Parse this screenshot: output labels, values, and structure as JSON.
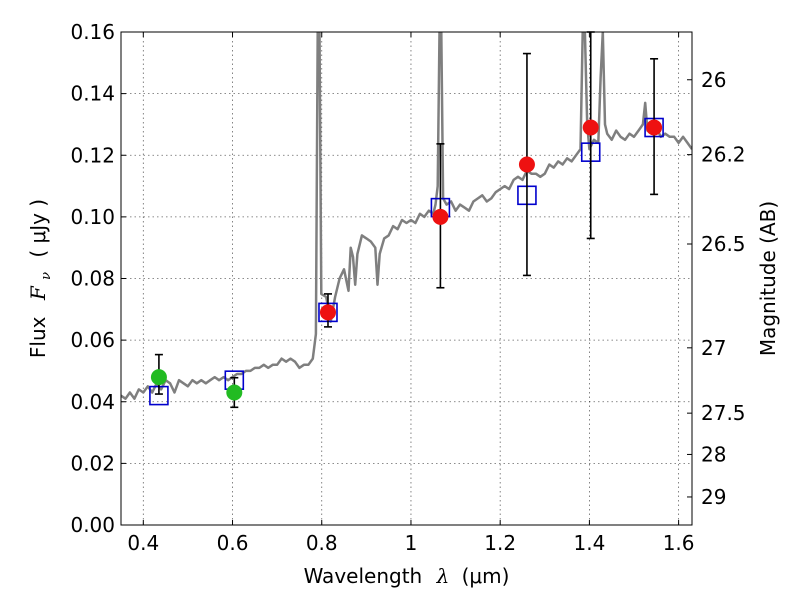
{
  "chart_data": {
    "type": "scatter",
    "xlabel_prefix": "Wavelength",
    "xlabel_symbol": "λ",
    "xlabel_unit": "(μm)",
    "ylabel_prefix": "Flux",
    "ylabel_symbol": "F",
    "ylabel_sub": "ν",
    "ylabel_unit": "( μJy )",
    "y2label": "Magnitude (AB)",
    "xlim": [
      0.35,
      1.63
    ],
    "ylim": [
      0.0,
      0.16
    ],
    "grid": true,
    "x_ticks": [
      0.4,
      0.6,
      0.8,
      1.0,
      1.2,
      1.4,
      1.6
    ],
    "x_tick_labels": [
      "0.4",
      "0.6",
      "0.8",
      "1",
      "1.2",
      "1.4",
      "1.6"
    ],
    "y_ticks": [
      0.0,
      0.02,
      0.04,
      0.06,
      0.08,
      0.1,
      0.12,
      0.14,
      0.16
    ],
    "y_tick_labels": [
      "0.00",
      "0.02",
      "0.04",
      "0.06",
      "0.08",
      "0.10",
      "0.12",
      "0.14",
      "0.16"
    ],
    "y2_ticks": [
      {
        "label": "26",
        "flux": 0.1445
      },
      {
        "label": "26.2",
        "flux": 0.1202
      },
      {
        "label": "26.5",
        "flux": 0.0912
      },
      {
        "label": "27",
        "flux": 0.0575
      },
      {
        "label": "27.5",
        "flux": 0.0363
      },
      {
        "label": "28",
        "flux": 0.0229
      },
      {
        "label": "29",
        "flux": 0.0091
      }
    ],
    "colors": {
      "spectrum": "#7f7f7f",
      "model_box": "#0000cc",
      "green_points": "#22bb22",
      "red_points": "#ee1111",
      "errorbar": "#000000"
    },
    "spectrum": {
      "name": "model spectrum",
      "points": [
        [
          0.35,
          0.042
        ],
        [
          0.36,
          0.041
        ],
        [
          0.37,
          0.043
        ],
        [
          0.38,
          0.041
        ],
        [
          0.39,
          0.044
        ],
        [
          0.4,
          0.043
        ],
        [
          0.41,
          0.045
        ],
        [
          0.42,
          0.043
        ],
        [
          0.43,
          0.046
        ],
        [
          0.44,
          0.044
        ],
        [
          0.45,
          0.047
        ],
        [
          0.46,
          0.046
        ],
        [
          0.47,
          0.043
        ],
        [
          0.48,
          0.047
        ],
        [
          0.49,
          0.046
        ],
        [
          0.5,
          0.045
        ],
        [
          0.51,
          0.047
        ],
        [
          0.52,
          0.046
        ],
        [
          0.53,
          0.047
        ],
        [
          0.54,
          0.046
        ],
        [
          0.55,
          0.047
        ],
        [
          0.56,
          0.048
        ],
        [
          0.57,
          0.047
        ],
        [
          0.58,
          0.048
        ],
        [
          0.59,
          0.047
        ],
        [
          0.6,
          0.048
        ],
        [
          0.61,
          0.049
        ],
        [
          0.62,
          0.049
        ],
        [
          0.63,
          0.05
        ],
        [
          0.64,
          0.05
        ],
        [
          0.65,
          0.051
        ],
        [
          0.66,
          0.051
        ],
        [
          0.67,
          0.052
        ],
        [
          0.68,
          0.051
        ],
        [
          0.69,
          0.052
        ],
        [
          0.7,
          0.052
        ],
        [
          0.71,
          0.054
        ],
        [
          0.72,
          0.053
        ],
        [
          0.73,
          0.054
        ],
        [
          0.74,
          0.053
        ],
        [
          0.75,
          0.051
        ],
        [
          0.76,
          0.052
        ],
        [
          0.77,
          0.052
        ],
        [
          0.78,
          0.054
        ],
        [
          0.787,
          0.062
        ],
        [
          0.791,
          0.16
        ],
        [
          0.795,
          0.16
        ],
        [
          0.799,
          0.075
        ],
        [
          0.81,
          0.074
        ],
        [
          0.82,
          0.066
        ],
        [
          0.83,
          0.074
        ],
        [
          0.84,
          0.08
        ],
        [
          0.85,
          0.083
        ],
        [
          0.86,
          0.076
        ],
        [
          0.865,
          0.09
        ],
        [
          0.87,
          0.087
        ],
        [
          0.875,
          0.078
        ],
        [
          0.88,
          0.088
        ],
        [
          0.89,
          0.094
        ],
        [
          0.9,
          0.093
        ],
        [
          0.91,
          0.092
        ],
        [
          0.92,
          0.09
        ],
        [
          0.925,
          0.078
        ],
        [
          0.93,
          0.088
        ],
        [
          0.94,
          0.093
        ],
        [
          0.95,
          0.094
        ],
        [
          0.96,
          0.097
        ],
        [
          0.97,
          0.096
        ],
        [
          0.98,
          0.099
        ],
        [
          0.99,
          0.098
        ],
        [
          1.0,
          0.099
        ],
        [
          1.01,
          0.098
        ],
        [
          1.02,
          0.101
        ],
        [
          1.03,
          0.1
        ],
        [
          1.04,
          0.102
        ],
        [
          1.05,
          0.101
        ],
        [
          1.055,
          0.104
        ],
        [
          1.06,
          0.11
        ],
        [
          1.064,
          0.16
        ],
        [
          1.068,
          0.16
        ],
        [
          1.072,
          0.106
        ],
        [
          1.08,
          0.104
        ],
        [
          1.09,
          0.105
        ],
        [
          1.1,
          0.102
        ],
        [
          1.11,
          0.104
        ],
        [
          1.12,
          0.103
        ],
        [
          1.13,
          0.102
        ],
        [
          1.14,
          0.105
        ],
        [
          1.15,
          0.106
        ],
        [
          1.16,
          0.107
        ],
        [
          1.17,
          0.105
        ],
        [
          1.18,
          0.106
        ],
        [
          1.19,
          0.108
        ],
        [
          1.2,
          0.109
        ],
        [
          1.21,
          0.11
        ],
        [
          1.22,
          0.109
        ],
        [
          1.23,
          0.112
        ],
        [
          1.24,
          0.113
        ],
        [
          1.25,
          0.112
        ],
        [
          1.26,
          0.115
        ],
        [
          1.27,
          0.114
        ],
        [
          1.28,
          0.114
        ],
        [
          1.29,
          0.113
        ],
        [
          1.3,
          0.114
        ],
        [
          1.31,
          0.117
        ],
        [
          1.32,
          0.116
        ],
        [
          1.33,
          0.118
        ],
        [
          1.34,
          0.117
        ],
        [
          1.35,
          0.119
        ],
        [
          1.36,
          0.118
        ],
        [
          1.37,
          0.12
        ],
        [
          1.38,
          0.122
        ],
        [
          1.385,
          0.16
        ],
        [
          1.39,
          0.16
        ],
        [
          1.395,
          0.13
        ],
        [
          1.4,
          0.122
        ],
        [
          1.41,
          0.125
        ],
        [
          1.42,
          0.124
        ],
        [
          1.425,
          0.145
        ],
        [
          1.43,
          0.16
        ],
        [
          1.435,
          0.13
        ],
        [
          1.44,
          0.127
        ],
        [
          1.45,
          0.125
        ],
        [
          1.46,
          0.128
        ],
        [
          1.47,
          0.126
        ],
        [
          1.48,
          0.125
        ],
        [
          1.49,
          0.127
        ],
        [
          1.5,
          0.126
        ],
        [
          1.51,
          0.128
        ],
        [
          1.52,
          0.13
        ],
        [
          1.525,
          0.137
        ],
        [
          1.53,
          0.128
        ],
        [
          1.54,
          0.127
        ],
        [
          1.55,
          0.129
        ],
        [
          1.56,
          0.126
        ],
        [
          1.57,
          0.127
        ],
        [
          1.58,
          0.126
        ],
        [
          1.59,
          0.126
        ],
        [
          1.6,
          0.124
        ],
        [
          1.61,
          0.126
        ],
        [
          1.62,
          0.124
        ],
        [
          1.63,
          0.122
        ]
      ]
    },
    "model_boxes": [
      {
        "x": 0.435,
        "y": 0.042
      },
      {
        "x": 0.604,
        "y": 0.047
      },
      {
        "x": 0.814,
        "y": 0.069
      },
      {
        "x": 1.066,
        "y": 0.103
      },
      {
        "x": 1.26,
        "y": 0.107
      },
      {
        "x": 1.403,
        "y": 0.121
      },
      {
        "x": 1.545,
        "y": 0.129
      }
    ],
    "series": [
      {
        "name": "green points",
        "points": [
          {
            "x": 0.435,
            "y": 0.048,
            "err_low": 0.0425,
            "err_high": 0.0553
          },
          {
            "x": 0.604,
            "y": 0.043,
            "err_low": 0.0382,
            "err_high": 0.0478
          }
        ]
      },
      {
        "name": "red points",
        "points": [
          {
            "x": 0.814,
            "y": 0.069,
            "err_low": 0.0643,
            "err_high": 0.075
          },
          {
            "x": 1.066,
            "y": 0.1,
            "err_low": 0.077,
            "err_high": 0.1237
          },
          {
            "x": 1.26,
            "y": 0.117,
            "err_low": 0.081,
            "err_high": 0.153
          },
          {
            "x": 1.403,
            "y": 0.129,
            "err_low": 0.093,
            "err_high": 0.16
          },
          {
            "x": 1.545,
            "y": 0.129,
            "err_low": 0.1073,
            "err_high": 0.1513
          }
        ]
      }
    ]
  }
}
